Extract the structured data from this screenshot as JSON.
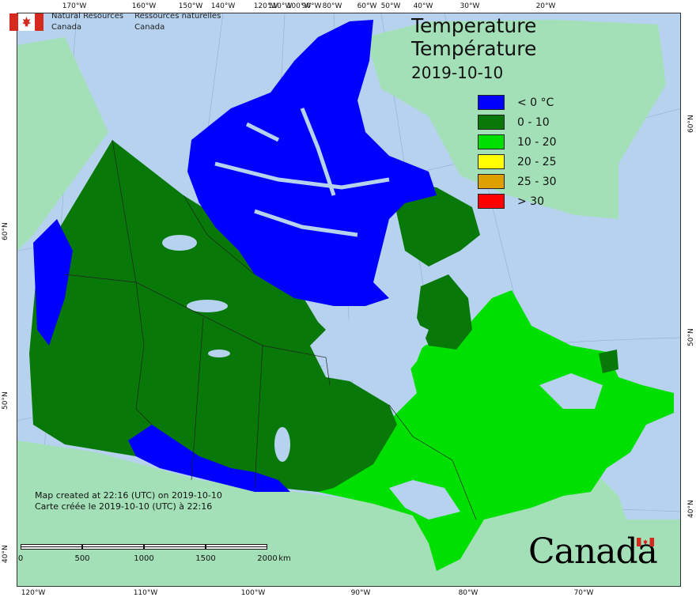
{
  "header": {
    "agency_en_1": "Natural Resources",
    "agency_en_2": "Canada",
    "agency_fr_1": "Ressources naturelles",
    "agency_fr_2": "Canada"
  },
  "title": {
    "en": "Temperature",
    "fr": "Température",
    "date": "2019-10-10"
  },
  "legend": [
    {
      "label": "< 0 °C",
      "color": "#0000ff"
    },
    {
      "label": "0 - 10",
      "color": "#087808"
    },
    {
      "label": "10 - 20",
      "color": "#00e000"
    },
    {
      "label": "20 - 25",
      "color": "#ffff00"
    },
    {
      "label": "25 - 30",
      "color": "#dda000"
    },
    {
      "label": "> 30",
      "color": "#ff0000"
    }
  ],
  "credits": {
    "en": "Map created at 22:16 (UTC) on 2019-10-10",
    "fr": "Carte créée le 2019-10-10 (UTC) à 22:16"
  },
  "scale_bar": {
    "labels": [
      "0",
      "500",
      "1000",
      "1500",
      "2000"
    ],
    "unit": "km"
  },
  "wordmark": "Canada",
  "graticule": {
    "top": [
      "170°W",
      "160°W",
      "150°W",
      "140°W",
      "120°W",
      "110°W",
      "100°W",
      "90°W",
      "80°W",
      "60°W",
      "50°W",
      "40°W",
      "30°W",
      "20°W"
    ],
    "bottom": [
      "120°W",
      "110°W",
      "100°W",
      "90°W",
      "80°W",
      "70°W"
    ],
    "left": [
      "60°N",
      "50°N",
      "40°N"
    ],
    "right": [
      "60°N",
      "50°N",
      "40°N"
    ]
  },
  "colors": {
    "ocean": "#b6d2ee",
    "foreign_land": "#a3e0b7",
    "below_zero": "#0000ff",
    "zero_to_ten": "#087808",
    "ten_to_twenty": "#00e000"
  }
}
